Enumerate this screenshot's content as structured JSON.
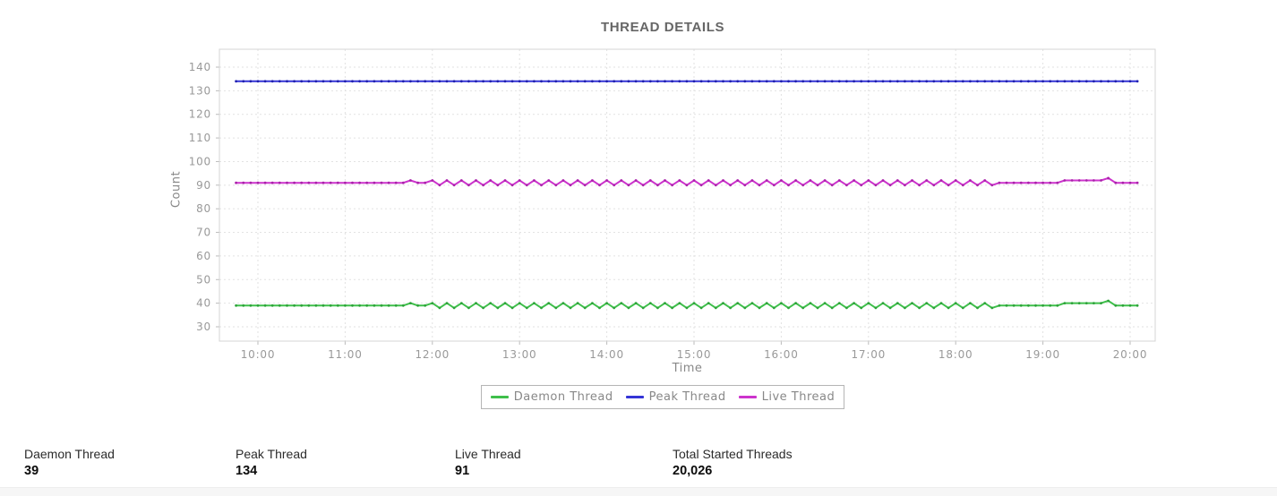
{
  "chart_data": {
    "type": "line",
    "title": "THREAD DETAILS",
    "xlabel": "Time",
    "ylabel": "Count",
    "grid": true,
    "legend_position": "bottom",
    "ylim": [
      24,
      148
    ],
    "y_ticks": [
      30,
      40,
      50,
      60,
      70,
      80,
      90,
      100,
      110,
      120,
      130,
      140
    ],
    "x_tick_hours": [
      10,
      11,
      12,
      13,
      14,
      15,
      16,
      17,
      18,
      19,
      20
    ],
    "x_tick_labels": [
      "10:00",
      "11:00",
      "12:00",
      "13:00",
      "14:00",
      "15:00",
      "16:00",
      "17:00",
      "18:00",
      "19:00",
      "20:00"
    ],
    "x_start_hour": 9.75,
    "x_interval_hours": 0.0833333,
    "series": [
      {
        "name": "Daemon Thread",
        "color": "#3fbf4b",
        "marker_color": "#2da339",
        "values": [
          39,
          39,
          39,
          39,
          39,
          39,
          39,
          39,
          39,
          39,
          39,
          39,
          39,
          39,
          39,
          39,
          39,
          39,
          39,
          39,
          39,
          39,
          39,
          39,
          40,
          39,
          39,
          40,
          38,
          40,
          38,
          40,
          38,
          40,
          38,
          40,
          38,
          40,
          38,
          40,
          38,
          40,
          38,
          40,
          38,
          40,
          38,
          40,
          38,
          40,
          38,
          40,
          38,
          40,
          38,
          40,
          38,
          40,
          38,
          40,
          38,
          40,
          38,
          40,
          38,
          40,
          38,
          40,
          38,
          40,
          38,
          40,
          38,
          40,
          38,
          40,
          38,
          40,
          38,
          40,
          38,
          40,
          38,
          40,
          38,
          40,
          38,
          40,
          38,
          40,
          38,
          40,
          38,
          40,
          38,
          40,
          38,
          40,
          38,
          40,
          38,
          40,
          38,
          40,
          38,
          39,
          39,
          39,
          39,
          39,
          39,
          39,
          39,
          39,
          40,
          40,
          40,
          40,
          40,
          40,
          41,
          39,
          39,
          39,
          39
        ]
      },
      {
        "name": "Peak Thread",
        "color": "#3434d6",
        "marker_color": "#2020b0",
        "values": [
          134,
          134,
          134,
          134,
          134,
          134,
          134,
          134,
          134,
          134,
          134,
          134,
          134,
          134,
          134,
          134,
          134,
          134,
          134,
          134,
          134,
          134,
          134,
          134,
          134,
          134,
          134,
          134,
          134,
          134,
          134,
          134,
          134,
          134,
          134,
          134,
          134,
          134,
          134,
          134,
          134,
          134,
          134,
          134,
          134,
          134,
          134,
          134,
          134,
          134,
          134,
          134,
          134,
          134,
          134,
          134,
          134,
          134,
          134,
          134,
          134,
          134,
          134,
          134,
          134,
          134,
          134,
          134,
          134,
          134,
          134,
          134,
          134,
          134,
          134,
          134,
          134,
          134,
          134,
          134,
          134,
          134,
          134,
          134,
          134,
          134,
          134,
          134,
          134,
          134,
          134,
          134,
          134,
          134,
          134,
          134,
          134,
          134,
          134,
          134,
          134,
          134,
          134,
          134,
          134,
          134,
          134,
          134,
          134,
          134,
          134,
          134,
          134,
          134,
          134,
          134,
          134,
          134,
          134,
          134,
          134,
          134,
          134,
          134,
          134
        ]
      },
      {
        "name": "Live Thread",
        "color": "#cc33cc",
        "marker_color": "#aa22aa",
        "values": [
          91,
          91,
          91,
          91,
          91,
          91,
          91,
          91,
          91,
          91,
          91,
          91,
          91,
          91,
          91,
          91,
          91,
          91,
          91,
          91,
          91,
          91,
          91,
          91,
          92,
          91,
          91,
          92,
          90,
          92,
          90,
          92,
          90,
          92,
          90,
          92,
          90,
          92,
          90,
          92,
          90,
          92,
          90,
          92,
          90,
          92,
          90,
          92,
          90,
          92,
          90,
          92,
          90,
          92,
          90,
          92,
          90,
          92,
          90,
          92,
          90,
          92,
          90,
          92,
          90,
          92,
          90,
          92,
          90,
          92,
          90,
          92,
          90,
          92,
          90,
          92,
          90,
          92,
          90,
          92,
          90,
          92,
          90,
          92,
          90,
          92,
          90,
          92,
          90,
          92,
          90,
          92,
          90,
          92,
          90,
          92,
          90,
          92,
          90,
          92,
          90,
          92,
          90,
          92,
          90,
          91,
          91,
          91,
          91,
          91,
          91,
          91,
          91,
          91,
          92,
          92,
          92,
          92,
          92,
          92,
          93,
          91,
          91,
          91,
          91
        ]
      }
    ]
  },
  "stats": [
    {
      "label": "Daemon Thread",
      "value": "39"
    },
    {
      "label": "Peak Thread",
      "value": "134"
    },
    {
      "label": "Live Thread",
      "value": "91"
    },
    {
      "label": "Total Started Threads",
      "value": "20,026"
    }
  ]
}
